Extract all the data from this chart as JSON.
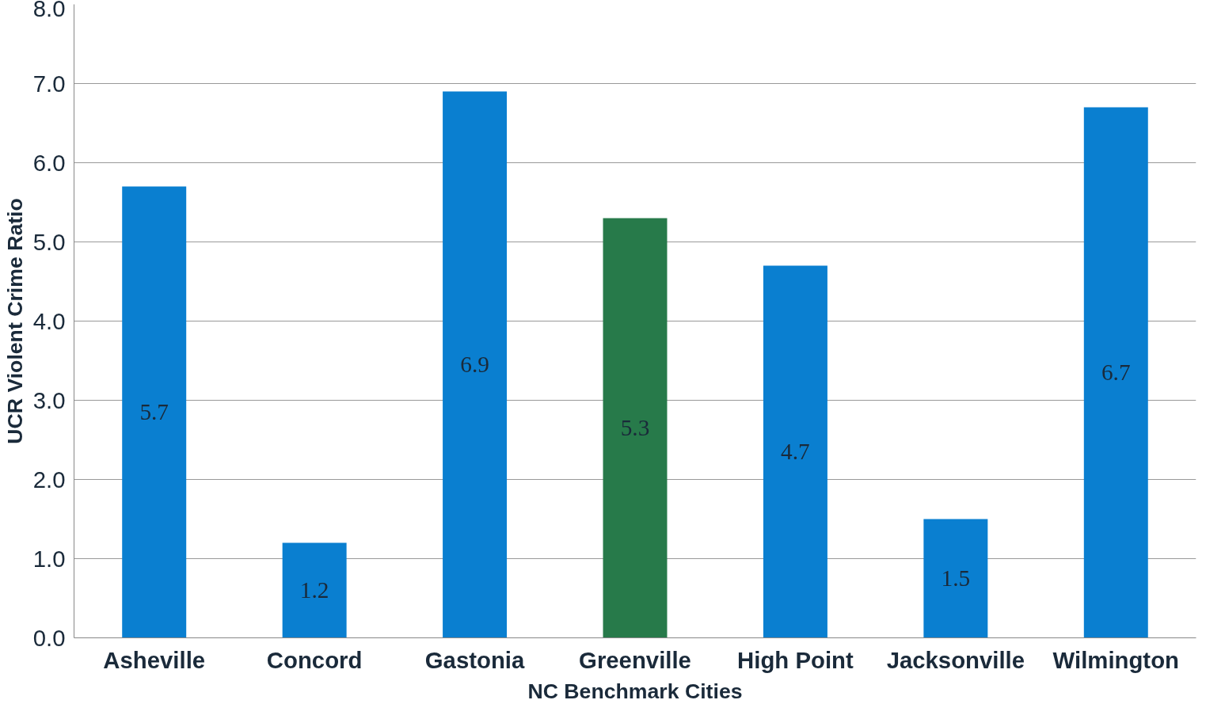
{
  "chart_data": {
    "type": "bar",
    "xlabel": "NC Benchmark Cities",
    "ylabel": "UCR Violent Crime Ratio",
    "categories": [
      "Asheville",
      "Concord",
      "Gastonia",
      "Greenville",
      "High Point",
      "Jacksonville",
      "Wilmington"
    ],
    "values": [
      5.7,
      1.2,
      6.9,
      5.3,
      4.7,
      1.5,
      6.7
    ],
    "colors": [
      "#0a7fd0",
      "#0a7fd0",
      "#0a7fd0",
      "#277a4a",
      "#0a7fd0",
      "#0a7fd0",
      "#0a7fd0"
    ],
    "ylim": [
      0,
      8
    ],
    "yticks": [
      {
        "value": 0,
        "label": "0.0"
      },
      {
        "value": 1,
        "label": "1.0"
      },
      {
        "value": 2,
        "label": "2.0"
      },
      {
        "value": 3,
        "label": "3.0"
      },
      {
        "value": 4,
        "label": "4.0"
      },
      {
        "value": 5,
        "label": "5.0"
      },
      {
        "value": 6,
        "label": "6.0"
      },
      {
        "value": 7,
        "label": "7.0"
      },
      {
        "value": 8,
        "label": "8.0"
      }
    ],
    "grid": "y",
    "data_labels": true
  }
}
